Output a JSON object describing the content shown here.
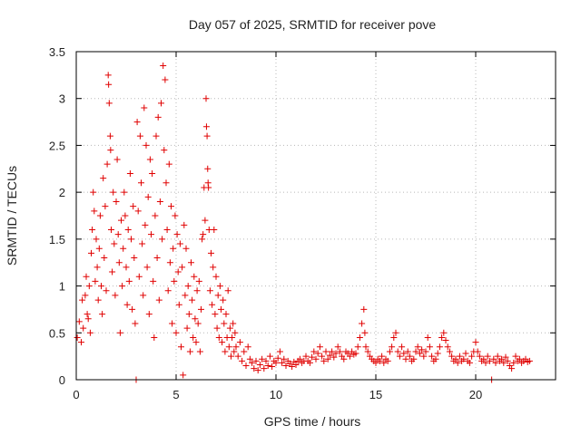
{
  "chart_data": {
    "type": "scatter",
    "title": "Day 057 of 2025, SRMTID for receiver pove",
    "xlabel": "GPS time / hours",
    "ylabel": "SRMTID / TECUs",
    "xlim": [
      0,
      24
    ],
    "ylim": [
      0,
      3.5
    ],
    "xticks": [
      0,
      5,
      10,
      15,
      20
    ],
    "yticks": [
      0,
      0.5,
      1,
      1.5,
      2,
      2.5,
      3,
      3.5
    ],
    "xtick_labels": [
      "0",
      "5",
      "10",
      "15",
      "20"
    ],
    "ytick_labels": [
      "0",
      "0.5",
      "1",
      "1.5",
      "2",
      "2.5",
      "3",
      "3.5"
    ],
    "grid": true,
    "marker": "+",
    "series": [
      {
        "name": "SRMTID",
        "color": "#e00000",
        "points": [
          [
            0.05,
            0.45
          ],
          [
            0.15,
            0.62
          ],
          [
            0.25,
            0.4
          ],
          [
            0.3,
            0.85
          ],
          [
            0.35,
            0.55
          ],
          [
            0.45,
            0.9
          ],
          [
            0.5,
            1.1
          ],
          [
            0.55,
            0.7
          ],
          [
            0.6,
            0.65
          ],
          [
            0.65,
            1.0
          ],
          [
            0.7,
            0.5
          ],
          [
            0.75,
            1.35
          ],
          [
            0.8,
            1.6
          ],
          [
            0.85,
            2.0
          ],
          [
            0.9,
            1.8
          ],
          [
            0.95,
            1.05
          ],
          [
            1.0,
            1.5
          ],
          [
            1.05,
            1.2
          ],
          [
            1.1,
            0.85
          ],
          [
            1.15,
            1.4
          ],
          [
            1.2,
            1.75
          ],
          [
            1.25,
            1.0
          ],
          [
            1.3,
            0.7
          ],
          [
            1.35,
            2.15
          ],
          [
            1.4,
            1.3
          ],
          [
            1.45,
            1.85
          ],
          [
            1.5,
            0.95
          ],
          [
            1.55,
            2.3
          ],
          [
            1.6,
            3.25
          ],
          [
            1.62,
            3.15
          ],
          [
            1.65,
            2.95
          ],
          [
            1.7,
            2.6
          ],
          [
            1.72,
            2.45
          ],
          [
            1.75,
            1.6
          ],
          [
            1.8,
            1.15
          ],
          [
            1.85,
            2.0
          ],
          [
            1.9,
            1.45
          ],
          [
            1.95,
            0.9
          ],
          [
            2.0,
            1.9
          ],
          [
            2.05,
            2.35
          ],
          [
            2.1,
            1.55
          ],
          [
            2.15,
            1.25
          ],
          [
            2.2,
            0.5
          ],
          [
            2.25,
            1.7
          ],
          [
            2.3,
            1.0
          ],
          [
            2.35,
            1.4
          ],
          [
            2.4,
            2.0
          ],
          [
            2.45,
            1.75
          ],
          [
            2.5,
            1.2
          ],
          [
            2.55,
            0.8
          ],
          [
            2.6,
            1.6
          ],
          [
            2.65,
            1.05
          ],
          [
            2.7,
            2.2
          ],
          [
            2.75,
            1.5
          ],
          [
            2.8,
            0.75
          ],
          [
            2.85,
            1.85
          ],
          [
            2.9,
            1.3
          ],
          [
            2.95,
            0.6
          ],
          [
            3.0,
            0.0
          ],
          [
            3.05,
            2.75
          ],
          [
            3.1,
            1.8
          ],
          [
            3.15,
            1.1
          ],
          [
            3.2,
            2.6
          ],
          [
            3.25,
            2.1
          ],
          [
            3.3,
            1.45
          ],
          [
            3.35,
            0.9
          ],
          [
            3.4,
            2.9
          ],
          [
            3.45,
            1.65
          ],
          [
            3.5,
            2.5
          ],
          [
            3.55,
            1.2
          ],
          [
            3.6,
            1.95
          ],
          [
            3.65,
            0.7
          ],
          [
            3.7,
            2.35
          ],
          [
            3.75,
            1.55
          ],
          [
            3.8,
            2.2
          ],
          [
            3.85,
            1.05
          ],
          [
            3.9,
            0.45
          ],
          [
            3.95,
            1.75
          ],
          [
            4.0,
            2.6
          ],
          [
            4.05,
            1.3
          ],
          [
            4.1,
            2.8
          ],
          [
            4.15,
            0.85
          ],
          [
            4.2,
            1.9
          ],
          [
            4.25,
            2.95
          ],
          [
            4.3,
            1.5
          ],
          [
            4.35,
            3.35
          ],
          [
            4.4,
            2.45
          ],
          [
            4.45,
            3.2
          ],
          [
            4.5,
            2.1
          ],
          [
            4.55,
            1.6
          ],
          [
            4.6,
            0.95
          ],
          [
            4.65,
            2.3
          ],
          [
            4.7,
            1.25
          ],
          [
            4.75,
            1.85
          ],
          [
            4.8,
            0.6
          ],
          [
            4.85,
            1.4
          ],
          [
            4.9,
            1.05
          ],
          [
            4.95,
            1.75
          ],
          [
            5.0,
            0.5
          ],
          [
            5.05,
            1.55
          ],
          [
            5.1,
            1.15
          ],
          [
            5.15,
            0.8
          ],
          [
            5.2,
            1.45
          ],
          [
            5.25,
            0.35
          ],
          [
            5.3,
            1.2
          ],
          [
            5.35,
            0.05
          ],
          [
            5.4,
            1.65
          ],
          [
            5.45,
            0.9
          ],
          [
            5.5,
            1.4
          ],
          [
            5.55,
            0.55
          ],
          [
            5.6,
            1.0
          ],
          [
            5.65,
            0.7
          ],
          [
            5.7,
            0.3
          ],
          [
            5.75,
            1.25
          ],
          [
            5.8,
            0.85
          ],
          [
            5.85,
            0.45
          ],
          [
            5.9,
            1.1
          ],
          [
            5.95,
            0.65
          ],
          [
            6.0,
            0.4
          ],
          [
            6.05,
            0.95
          ],
          [
            6.1,
            0.6
          ],
          [
            6.15,
            1.05
          ],
          [
            6.2,
            0.3
          ],
          [
            6.25,
            0.75
          ],
          [
            6.3,
            1.5
          ],
          [
            6.35,
            1.55
          ],
          [
            6.4,
            2.05
          ],
          [
            6.45,
            1.7
          ],
          [
            6.5,
            3.0
          ],
          [
            6.52,
            2.7
          ],
          [
            6.55,
            2.6
          ],
          [
            6.58,
            2.25
          ],
          [
            6.6,
            2.1
          ],
          [
            6.62,
            2.05
          ],
          [
            6.65,
            1.6
          ],
          [
            6.7,
            0.95
          ],
          [
            6.75,
            1.35
          ],
          [
            6.8,
            0.8
          ],
          [
            6.85,
            1.2
          ],
          [
            6.9,
            1.6
          ],
          [
            6.95,
            0.7
          ],
          [
            7.0,
            1.1
          ],
          [
            7.05,
            0.55
          ],
          [
            7.1,
            0.9
          ],
          [
            7.15,
            0.45
          ],
          [
            7.2,
            1.0
          ],
          [
            7.25,
            0.75
          ],
          [
            7.3,
            0.4
          ],
          [
            7.35,
            0.85
          ],
          [
            7.4,
            0.6
          ],
          [
            7.45,
            0.3
          ],
          [
            7.5,
            0.7
          ],
          [
            7.55,
            0.45
          ],
          [
            7.6,
            0.95
          ],
          [
            7.65,
            0.35
          ],
          [
            7.7,
            0.55
          ],
          [
            7.75,
            0.25
          ],
          [
            7.8,
            0.45
          ],
          [
            7.85,
            0.6
          ],
          [
            7.9,
            0.3
          ],
          [
            7.95,
            0.5
          ],
          [
            8.0,
            0.35
          ],
          [
            8.1,
            0.25
          ],
          [
            8.2,
            0.4
          ],
          [
            8.3,
            0.2
          ],
          [
            8.4,
            0.3
          ],
          [
            8.5,
            0.15
          ],
          [
            8.6,
            0.35
          ],
          [
            8.7,
            0.22
          ],
          [
            8.8,
            0.18
          ],
          [
            8.9,
            0.12
          ],
          [
            9.0,
            0.2
          ],
          [
            9.1,
            0.1
          ],
          [
            9.2,
            0.16
          ],
          [
            9.3,
            0.22
          ],
          [
            9.4,
            0.12
          ],
          [
            9.5,
            0.2
          ],
          [
            9.6,
            0.15
          ],
          [
            9.7,
            0.25
          ],
          [
            9.8,
            0.14
          ],
          [
            9.9,
            0.2
          ],
          [
            10.0,
            0.18
          ],
          [
            10.1,
            0.23
          ],
          [
            10.2,
            0.3
          ],
          [
            10.3,
            0.18
          ],
          [
            10.4,
            0.22
          ],
          [
            10.5,
            0.15
          ],
          [
            10.6,
            0.2
          ],
          [
            10.7,
            0.17
          ],
          [
            10.8,
            0.14
          ],
          [
            10.9,
            0.19
          ],
          [
            11.0,
            0.16
          ],
          [
            11.1,
            0.2
          ],
          [
            11.2,
            0.22
          ],
          [
            11.3,
            0.18
          ],
          [
            11.4,
            0.2
          ],
          [
            11.5,
            0.25
          ],
          [
            11.6,
            0.2
          ],
          [
            11.7,
            0.18
          ],
          [
            11.8,
            0.24
          ],
          [
            11.9,
            0.3
          ],
          [
            12.0,
            0.22
          ],
          [
            12.1,
            0.28
          ],
          [
            12.2,
            0.35
          ],
          [
            12.3,
            0.25
          ],
          [
            12.4,
            0.2
          ],
          [
            12.5,
            0.3
          ],
          [
            12.6,
            0.22
          ],
          [
            12.7,
            0.26
          ],
          [
            12.8,
            0.3
          ],
          [
            12.9,
            0.24
          ],
          [
            13.0,
            0.28
          ],
          [
            13.1,
            0.35
          ],
          [
            13.2,
            0.3
          ],
          [
            13.3,
            0.25
          ],
          [
            13.4,
            0.22
          ],
          [
            13.5,
            0.3
          ],
          [
            13.6,
            0.28
          ],
          [
            13.7,
            0.25
          ],
          [
            13.8,
            0.3
          ],
          [
            13.9,
            0.27
          ],
          [
            14.0,
            0.28
          ],
          [
            14.1,
            0.35
          ],
          [
            14.2,
            0.45
          ],
          [
            14.3,
            0.6
          ],
          [
            14.4,
            0.75
          ],
          [
            14.45,
            0.5
          ],
          [
            14.5,
            0.35
          ],
          [
            14.6,
            0.3
          ],
          [
            14.7,
            0.25
          ],
          [
            14.8,
            0.22
          ],
          [
            14.9,
            0.2
          ],
          [
            15.0,
            0.18
          ],
          [
            15.1,
            0.22
          ],
          [
            15.2,
            0.2
          ],
          [
            15.3,
            0.25
          ],
          [
            15.4,
            0.18
          ],
          [
            15.5,
            0.22
          ],
          [
            15.6,
            0.2
          ],
          [
            15.7,
            0.3
          ],
          [
            15.8,
            0.35
          ],
          [
            15.9,
            0.45
          ],
          [
            16.0,
            0.5
          ],
          [
            16.1,
            0.3
          ],
          [
            16.2,
            0.25
          ],
          [
            16.3,
            0.35
          ],
          [
            16.4,
            0.28
          ],
          [
            16.5,
            0.22
          ],
          [
            16.6,
            0.3
          ],
          [
            16.7,
            0.25
          ],
          [
            16.8,
            0.2
          ],
          [
            16.9,
            0.22
          ],
          [
            17.0,
            0.3
          ],
          [
            17.1,
            0.35
          ],
          [
            17.2,
            0.28
          ],
          [
            17.3,
            0.32
          ],
          [
            17.4,
            0.25
          ],
          [
            17.5,
            0.3
          ],
          [
            17.6,
            0.45
          ],
          [
            17.7,
            0.35
          ],
          [
            17.8,
            0.25
          ],
          [
            17.9,
            0.2
          ],
          [
            18.0,
            0.22
          ],
          [
            18.1,
            0.28
          ],
          [
            18.2,
            0.35
          ],
          [
            18.3,
            0.45
          ],
          [
            18.4,
            0.5
          ],
          [
            18.5,
            0.42
          ],
          [
            18.6,
            0.35
          ],
          [
            18.7,
            0.3
          ],
          [
            18.8,
            0.25
          ],
          [
            18.9,
            0.2
          ],
          [
            19.0,
            0.22
          ],
          [
            19.1,
            0.18
          ],
          [
            19.2,
            0.25
          ],
          [
            19.3,
            0.2
          ],
          [
            19.4,
            0.22
          ],
          [
            19.5,
            0.28
          ],
          [
            19.6,
            0.2
          ],
          [
            19.7,
            0.18
          ],
          [
            19.8,
            0.25
          ],
          [
            19.9,
            0.3
          ],
          [
            20.0,
            0.4
          ],
          [
            20.1,
            0.3
          ],
          [
            20.2,
            0.25
          ],
          [
            20.3,
            0.2
          ],
          [
            20.4,
            0.22
          ],
          [
            20.5,
            0.18
          ],
          [
            20.6,
            0.25
          ],
          [
            20.7,
            0.2
          ],
          [
            20.8,
            0.0
          ],
          [
            20.9,
            0.22
          ],
          [
            21.0,
            0.18
          ],
          [
            21.1,
            0.25
          ],
          [
            21.2,
            0.2
          ],
          [
            21.3,
            0.22
          ],
          [
            21.4,
            0.18
          ],
          [
            21.5,
            0.24
          ],
          [
            21.6,
            0.2
          ],
          [
            21.7,
            0.15
          ],
          [
            21.8,
            0.12
          ],
          [
            21.9,
            0.18
          ],
          [
            22.0,
            0.25
          ],
          [
            22.1,
            0.2
          ],
          [
            22.2,
            0.22
          ],
          [
            22.3,
            0.18
          ],
          [
            22.4,
            0.2
          ],
          [
            22.5,
            0.22
          ],
          [
            22.6,
            0.19
          ],
          [
            22.7,
            0.2
          ]
        ]
      }
    ]
  }
}
